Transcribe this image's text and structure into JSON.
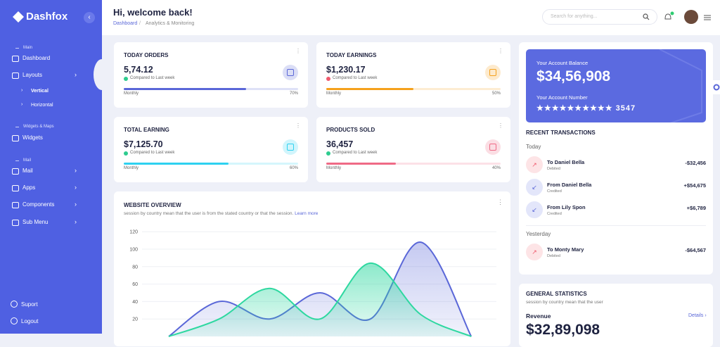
{
  "sidebar": {
    "brand": "Dashfox",
    "nav": [
      {
        "section": "Main"
      },
      {
        "item": "Dashboard"
      },
      {
        "item": "Layouts"
      },
      {
        "sub": "Vertical"
      },
      {
        "sub": "Horizontal"
      },
      {
        "section": "Widgets & Maps"
      },
      {
        "item": "Widgets"
      },
      {
        "section": "Mail"
      },
      {
        "item": "Mail"
      },
      {
        "item": "Apps"
      },
      {
        "item": "Components"
      },
      {
        "item": "Sub Menu"
      }
    ],
    "bottom": [
      "Suport",
      "Logout"
    ]
  },
  "header": {
    "title": "Hi, welcome back!",
    "breadcrumb": [
      "Dashboard",
      "Analytics & Monitoring"
    ],
    "search_placeholder": "Search for anything..."
  },
  "stats": [
    {
      "title": "TODAY ORDERS",
      "value": "5,74.12",
      "note": "Compared to Last week",
      "period": "Monthly",
      "progress": {
        "value": 70,
        "label": "70%"
      },
      "color": "#5a67d8"
    },
    {
      "title": "TODAY EARNINGS",
      "value": "$1,230.17",
      "note": "Compared to Last week",
      "period": "Monthly",
      "progress": {
        "value": 50,
        "label": "50%"
      },
      "color": "#f5a11c"
    },
    {
      "title": "TOTAL EARNING",
      "value": "$7,125.70",
      "note": "Compared to Last week",
      "period": "Monthly",
      "progress": {
        "value": 60,
        "label": "60%"
      },
      "color": "#2ed1f0"
    },
    {
      "title": "PRODUCTS SOLD",
      "value": "36,457",
      "note": "Compared to Last week",
      "period": "Monthly",
      "progress": {
        "value": 40,
        "label": "40%"
      },
      "color": "#ef6a86"
    }
  ],
  "overview": {
    "title": "WEBSITE OVERVIEW",
    "description": "session by country mean that the user is from the stated country or that the session.",
    "link": "Learn more",
    "chart": {
      "type": "area",
      "categories": [
        null,
        null,
        null,
        null,
        null,
        null,
        null
      ],
      "ylim": [
        0,
        120
      ],
      "yticks": [
        20,
        40,
        60,
        80,
        100,
        120
      ],
      "series": [
        {
          "color": "#5a67d8",
          "values": [
            0,
            40,
            20,
            50,
            20,
            108,
            0
          ]
        },
        {
          "color": "#2ed8a0",
          "values": [
            0,
            20,
            55,
            20,
            84,
            25,
            0
          ]
        }
      ]
    }
  },
  "balance": {
    "label": "Your Account Balance",
    "amount": "$34,56,908",
    "number_label": "Your Account Number",
    "number": "★★★★★★★★★★ 3547"
  },
  "transactions": {
    "title": "RECENT TRANSACTIONS",
    "groups": [
      {
        "label": "Today",
        "items": [
          {
            "name": "To Daniel Bella",
            "status": "Debited",
            "amount": "-$32,456"
          },
          {
            "name": "From Daniel Bella",
            "status": "Credited",
            "amount": "+$54,675"
          },
          {
            "name": "From Lily Spon",
            "status": "Credited",
            "amount": "+$6,789"
          }
        ]
      },
      {
        "label": "Yesterday",
        "items": [
          {
            "name": "To Monty Mary",
            "status": "Debited",
            "amount": "-$64,567"
          }
        ]
      }
    ]
  },
  "general": {
    "title": "GENERAL STATISTICS",
    "description": "session by country mean that the user",
    "metric": "Revenue",
    "link": "Details ›",
    "value": "$32,89,098"
  }
}
